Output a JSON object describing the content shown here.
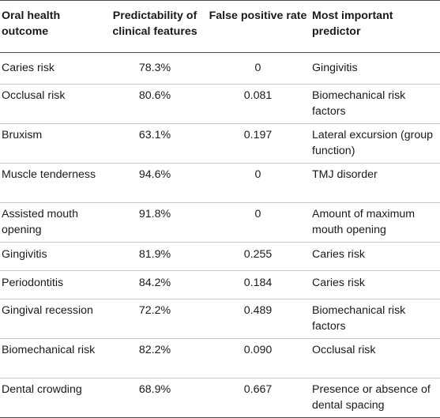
{
  "table": {
    "headers": [
      "Oral health outcome",
      "Predictability of clinical features",
      "False positive rate",
      "Most important predictor"
    ],
    "rows": [
      [
        "Caries risk",
        "78.3%",
        "0",
        "Gingivitis"
      ],
      [
        "Occlusal risk",
        "80.6%",
        "0.081",
        "Biomechanical risk factors"
      ],
      [
        "Bruxism",
        "63.1%",
        "0.197",
        "Lateral excursion (group function)"
      ],
      [
        "Muscle tenderness",
        "94.6%",
        "0",
        "TMJ disorder"
      ],
      [
        "Assisted mouth opening",
        "91.8%",
        "0",
        "Amount of maximum mouth opening"
      ],
      [
        "Gingivitis",
        "81.9%",
        "0.255",
        "Caries risk"
      ],
      [
        "Periodontitis",
        "84.2%",
        "0.184",
        "Caries risk"
      ],
      [
        "Gingival recession",
        "72.2%",
        "0.489",
        "Biomechanical risk factors"
      ],
      [
        "Biomechanical risk",
        "82.2%",
        "0.090",
        "Occlusal risk"
      ],
      [
        "Dental crowding",
        "68.9%",
        "0.667",
        "Presence or absence of dental spacing"
      ]
    ]
  }
}
